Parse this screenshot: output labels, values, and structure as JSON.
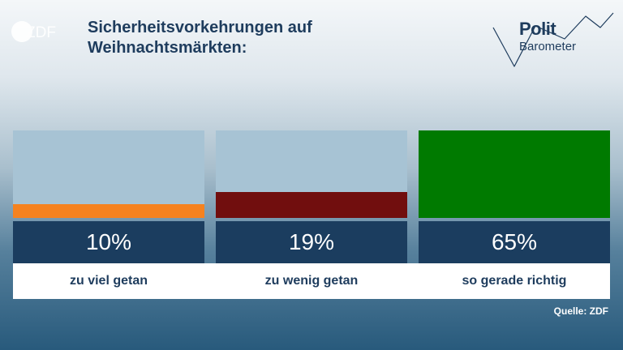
{
  "header": {
    "logo": "ZDF",
    "title": "Sicherheitsvorkehrungen auf Weihnachtsmärkten:",
    "brand_line1": "Polit",
    "brand_line2": "Barometer"
  },
  "chart_data": {
    "type": "bar",
    "categories": [
      "zu viel getan",
      "zu wenig getan",
      "so gerade richtig"
    ],
    "values": [
      10,
      19,
      65
    ],
    "value_labels": [
      "10%",
      "19%",
      "65%"
    ],
    "colors": [
      "#f5821f",
      "#710e0e",
      "#007a00"
    ],
    "ylim": [
      0,
      65
    ],
    "title": "Sicherheitsvorkehrungen auf Weihnachtsmärkten:"
  },
  "footer": {
    "source": "Quelle: ZDF"
  }
}
